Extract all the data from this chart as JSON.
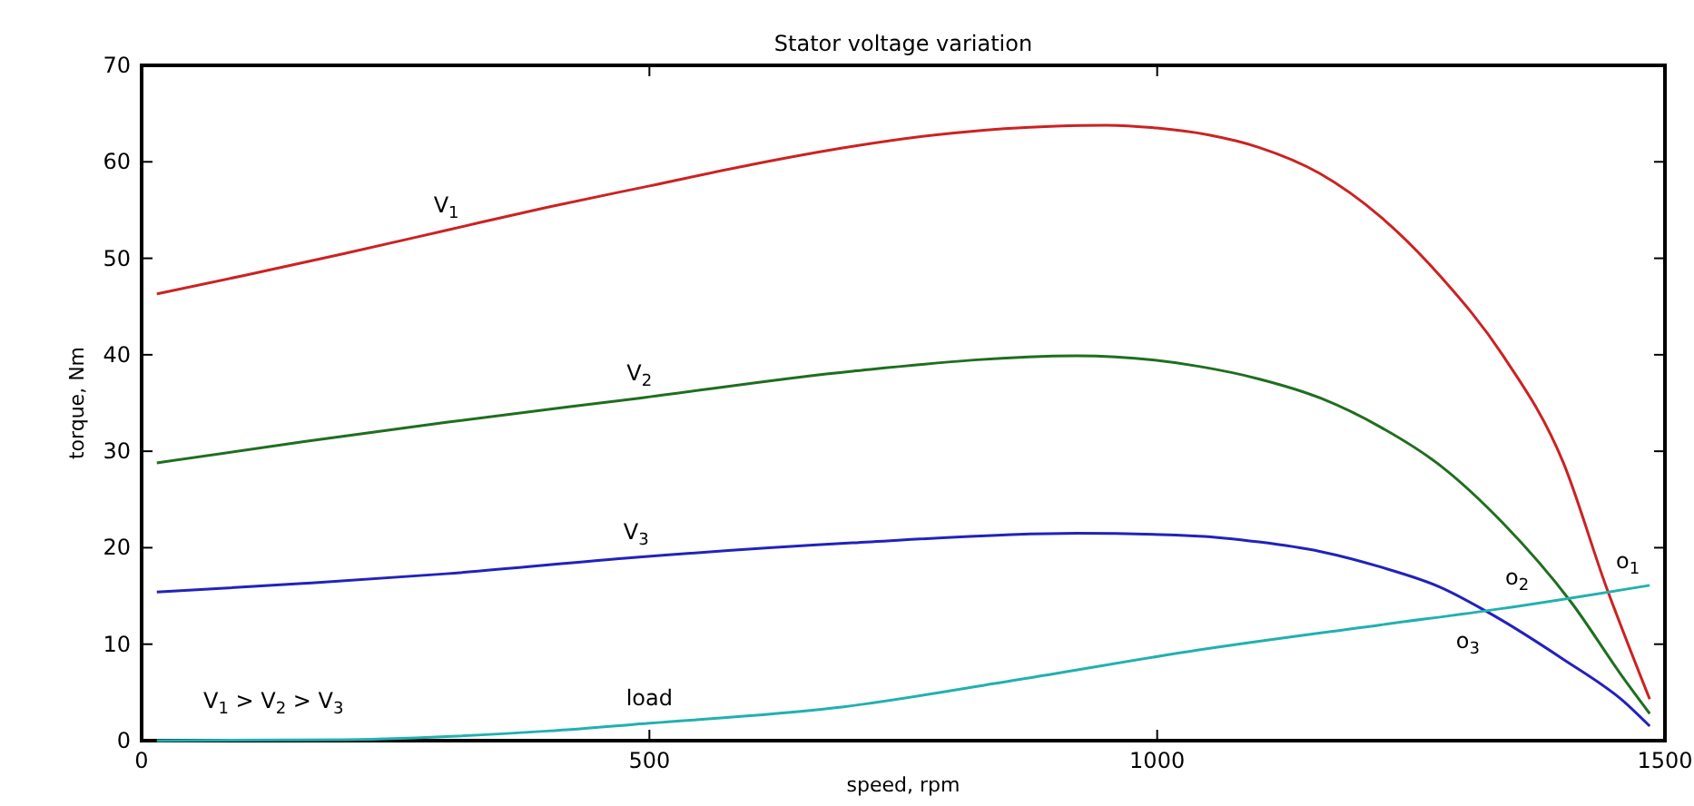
{
  "chart_data": {
    "type": "line",
    "title": "Stator voltage variation",
    "xlabel": "speed, rpm",
    "ylabel": "torque, Nm",
    "xlim": [
      0,
      1500
    ],
    "ylim": [
      0,
      70
    ],
    "xticks": [
      0,
      500,
      1000,
      1500
    ],
    "yticks": [
      0,
      10,
      20,
      30,
      40,
      50,
      60,
      70
    ],
    "grid": false,
    "marker": "none",
    "line_style": "solid",
    "series": [
      {
        "name": "V$_{1}$",
        "color": "#cc2222",
        "x": [
          15,
          100,
          200,
          300,
          400,
          500,
          600,
          700,
          800,
          900,
          950,
          1000,
          1050,
          1100,
          1160,
          1220,
          1280,
          1340,
          1400,
          1442,
          1485
        ],
        "values": [
          46.3,
          48.2,
          50.5,
          52.9,
          55.3,
          57.5,
          59.7,
          61.6,
          63,
          63.7,
          63.8,
          63.5,
          62.8,
          61.5,
          58.8,
          54.3,
          48,
          40,
          28.8,
          16,
          4.3
        ]
      },
      {
        "name": "V$_{2}$",
        "color": "#1f6e1f",
        "x": [
          15,
          160,
          300,
          490,
          700,
          921,
          1041,
          1100,
          1161,
          1220,
          1279,
          1340,
          1408,
          1459,
          1485
        ],
        "values": [
          28.8,
          31,
          33,
          35.5,
          38.3,
          39.9,
          38.8,
          37.5,
          35.5,
          32.5,
          28.5,
          22.6,
          14.3,
          6.5,
          2.8
        ]
      },
      {
        "name": "V$_{3}$",
        "color": "#2222bb",
        "x": [
          15,
          159,
          300,
          487,
          700,
          921,
          1041,
          1100,
          1161,
          1220,
          1279,
          1331,
          1399,
          1459,
          1485
        ],
        "values": [
          15.4,
          16.3,
          17.3,
          19,
          20.5,
          21.5,
          21.2,
          20.6,
          19.6,
          18,
          15.9,
          13,
          8.5,
          4.1,
          1.5
        ]
      },
      {
        "name": "load",
        "color": "#22b0b0",
        "x": [
          15,
          200,
          400,
          500,
          683,
          862,
          1041,
          1220,
          1340,
          1485
        ],
        "values": [
          0,
          0.1,
          1,
          1.8,
          3.4,
          6.3,
          9.4,
          12,
          13.7,
          16.1
        ]
      }
    ],
    "annotations": [
      {
        "text": "o$_{1}$",
        "x": 1442,
        "y": 15.2
      },
      {
        "text": "o$_{2}$",
        "x": 1408,
        "y": 14.3
      },
      {
        "text": "o$_{3}$",
        "x": 1331,
        "y": 13
      },
      "V$_{1}$ > V$_{2}$ > V$_{3}$"
    ]
  }
}
